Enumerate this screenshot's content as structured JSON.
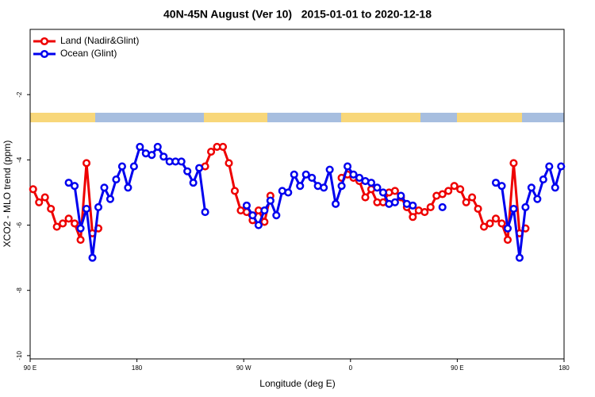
{
  "chart_data": {
    "type": "line",
    "title": "40N-45N August (Ver 10)   2015-01-01 to 2020-12-18",
    "x_label": "Longitude (deg E)",
    "y_label": "XCO2 - MLO trend (ppm)",
    "xlim": [
      90,
      540
    ],
    "xticks": [
      {
        "value": 90,
        "label": "90 E"
      },
      {
        "value": 180,
        "label": "180"
      },
      {
        "value": 270,
        "label": "90 W"
      },
      {
        "value": 360,
        "label": "0"
      },
      {
        "value": 450,
        "label": "90 E"
      },
      {
        "value": 540,
        "label": "180"
      }
    ],
    "ylim": [
      -10.1,
      0
    ],
    "yticks": [
      -2,
      -4,
      -6,
      -8,
      -10
    ],
    "legend": "top-left",
    "x": [
      92.5,
      97.5,
      102.5,
      107.5,
      112.5,
      117.5,
      122.5,
      127.5,
      132.5,
      137.5,
      142.5,
      147.5,
      152.5,
      157.5,
      162.5,
      167.5,
      172.5,
      177.5,
      182.5,
      187.5,
      192.5,
      197.5,
      202.5,
      207.5,
      212.5,
      217.5,
      222.5,
      227.5,
      232.5,
      237.5,
      242.5,
      247.5,
      252.5,
      257.5,
      262.5,
      267.5,
      272.5,
      277.5,
      282.5,
      287.5,
      292.5,
      297.5,
      302.5,
      307.5,
      312.5,
      317.5,
      322.5,
      327.5,
      332.5,
      337.5,
      342.5,
      347.5,
      352.5,
      357.5,
      362.5,
      367.5,
      372.5,
      377.5,
      382.5,
      387.5,
      392.5,
      397.5,
      402.5,
      407.5,
      412.5,
      417.5,
      422.5,
      427.5,
      432.5,
      437.5,
      442.5,
      447.5,
      452.5,
      457.5,
      462.5,
      467.5,
      472.5,
      477.5,
      482.5,
      487.5,
      492.5,
      497.5,
      502.5,
      507.5,
      512.5,
      517.5,
      522.5,
      527.5,
      532.5,
      537.5
    ],
    "series": [
      {
        "name": "Land (Nadir&Glint)",
        "color": "#ee0000",
        "values": [
          -4.9,
          -5.3,
          -5.15,
          -5.5,
          -6.05,
          -5.95,
          -5.8,
          -5.95,
          -6.45,
          -4.1,
          -6.25,
          -6.1,
          null,
          null,
          null,
          null,
          null,
          null,
          null,
          null,
          null,
          null,
          null,
          null,
          null,
          null,
          null,
          null,
          null,
          -4.2,
          -3.75,
          -3.6,
          -3.6,
          -4.1,
          -4.95,
          -5.55,
          -5.6,
          -5.85,
          -5.55,
          -5.9,
          -5.1,
          null,
          null,
          null,
          null,
          null,
          null,
          null,
          null,
          null,
          null,
          null,
          -4.55,
          -4.45,
          -4.55,
          -4.65,
          -5.15,
          -4.9,
          -5.3,
          -5.3,
          -5.0,
          -4.95,
          -5.15,
          -5.45,
          -5.75,
          -5.55,
          -5.6,
          -5.45,
          -5.1,
          -5.05,
          -4.95,
          -4.8,
          -4.9,
          -5.3,
          -5.15,
          -5.5,
          -6.05,
          -5.95,
          -5.8,
          -5.95,
          -6.45,
          -4.1,
          -6.25,
          -6.1,
          null,
          null,
          null,
          null,
          null,
          null
        ]
      },
      {
        "name": "Ocean (Glint)",
        "color": "#0000ee",
        "values": [
          null,
          null,
          null,
          null,
          null,
          null,
          -4.7,
          -4.8,
          -6.1,
          -5.5,
          -7.0,
          -5.45,
          -4.85,
          -5.2,
          -4.6,
          -4.2,
          -4.85,
          -4.2,
          -3.6,
          -3.8,
          -3.85,
          -3.6,
          -3.9,
          -4.05,
          -4.05,
          -4.05,
          -4.35,
          -4.7,
          -4.25,
          -5.6,
          null,
          null,
          null,
          null,
          null,
          null,
          -5.4,
          -5.7,
          -6.0,
          -5.55,
          -5.25,
          -5.7,
          -4.95,
          -5.0,
          -4.45,
          -4.8,
          -4.45,
          -4.55,
          -4.8,
          -4.85,
          -4.3,
          -5.35,
          -4.8,
          -4.2,
          -4.45,
          -4.55,
          -4.65,
          -4.7,
          -4.85,
          -5.0,
          -5.35,
          -5.3,
          -5.1,
          -5.35,
          -5.4,
          null,
          null,
          null,
          null,
          -5.45,
          null,
          null,
          null,
          null,
          null,
          null,
          null,
          null,
          -4.7,
          -4.8,
          -6.1,
          -5.5,
          -7.0,
          -5.45,
          -4.85,
          -5.2,
          -4.6,
          -4.2,
          -4.85,
          -4.2
        ]
      }
    ]
  }
}
